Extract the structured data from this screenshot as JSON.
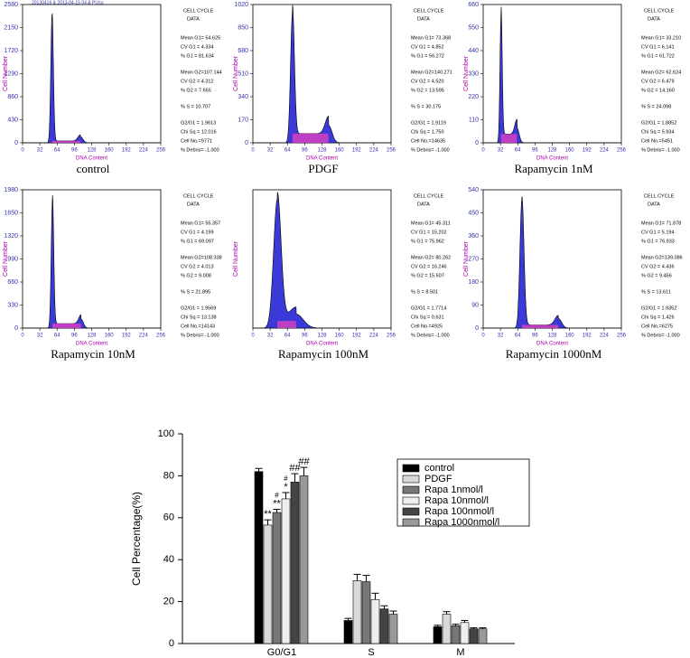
{
  "panels": [
    {
      "title": "control",
      "header": "20130416 & 2013-04-15 04 & PI.fcs",
      "ylabel": "Cell Number",
      "xlabel": "DNA Content",
      "cell_cycle": "CELL CYCLE",
      "data_label": "DATA",
      "ylim": [
        0,
        2580
      ],
      "yticks": [
        0,
        430,
        860,
        1290,
        1720,
        2150,
        2580
      ],
      "xlim": [
        0,
        256
      ],
      "xticks": [
        0,
        32,
        64,
        96,
        128,
        160,
        192,
        224,
        256
      ],
      "stats": [
        "Mean G1= 54.625",
        "CV G1 = 4.334",
        "% G1 = 81.634",
        "Mean G2=107.144",
        "CV G2 = 4.312",
        "% G2 = 7.655",
        "% S = 10.707",
        "G2/G1 = 1.9613",
        "Chi Sq = 12.016",
        "Cell No.=9771",
        "% Debris= -1.000"
      ]
    },
    {
      "title": "PDGF",
      "ylabel": "Cell Number",
      "xlabel": "DNA Content",
      "cell_cycle": "CELL CYCLE",
      "data_label": "DATA",
      "ylim": [
        0,
        1020
      ],
      "yticks": [
        0,
        170,
        340,
        510,
        680,
        850,
        1020
      ],
      "xlim": [
        0,
        256
      ],
      "xticks": [
        0,
        32,
        64,
        96,
        128,
        160,
        192,
        224,
        256
      ],
      "stats": [
        "Mean G1= 73.368",
        "CV G1 = 4.852",
        "% G1 = 56.272",
        "Mean G2=140.271",
        "CV G2 = 4.520",
        "% G2 = 13.595",
        "% S = 30.175",
        "G2/G1 = 1.9119",
        "Chi Sq = 1.750",
        "Cell No.=14635",
        "% Debris= -1.000"
      ]
    },
    {
      "title": "Rapamycin 1nM",
      "ylabel": "Cell Number",
      "xlabel": "DNA Content",
      "cell_cycle": "CELL CYCLE",
      "data_label": "DATA",
      "ylim": [
        0,
        660
      ],
      "yticks": [
        0,
        110,
        220,
        330,
        440,
        550,
        660
      ],
      "xlim": [
        0,
        256
      ],
      "xticks": [
        0,
        32,
        64,
        96,
        128,
        160,
        192,
        224,
        256
      ],
      "stats": [
        "Mean G1= 33.210",
        "CV G1 = 6.141",
        "% G1 = 61.722",
        "Mean G2= 62.624",
        "CV G2 = 6.479",
        "% G2 = 14.160",
        "% S = 24.098",
        "G2/G1 = 1.8852",
        "Chi Sq = 5.934",
        "Cell No.=5451",
        "% Debris= -1.000"
      ]
    },
    {
      "title": "Rapamycin 10nM",
      "ylabel": "Cell Number",
      "xlabel": "DNA Content",
      "cell_cycle": "CELL CYCLE",
      "data_label": "DATA",
      "ylim": [
        0,
        1980
      ],
      "yticks": [
        0,
        330,
        660,
        990,
        1320,
        1650,
        1980
      ],
      "xlim": [
        0,
        256
      ],
      "xticks": [
        0,
        32,
        64,
        96,
        128,
        160,
        192,
        224,
        256
      ],
      "stats": [
        "Mean G1= 55.357",
        "CV G1 = 4.199",
        "% G1 = 69.097",
        "Mean G2=108.338",
        "CV G2 = 4.013",
        "% G2 = 9.008",
        "% S = 21.895",
        "G2/G1 = 1.9569",
        "Chi Sq = 13.138",
        "Cell No.=14143",
        "% Debris= -1.000"
      ]
    },
    {
      "title": "Rapamycin 100nM",
      "ylabel": "Cell Number",
      "xlabel": "DNA Content",
      "cell_cycle": "CELL CYCLE",
      "data_label": "DATA",
      "xlim": [
        0,
        256
      ],
      "xticks": [
        0,
        32,
        64,
        96,
        128,
        160,
        192,
        224,
        256
      ],
      "stats": [
        "Mean G1= 45.311",
        "CV G1 = 15.202",
        "% G1 = 75.962",
        "Mean G2= 80.262",
        "CV G2 = 16.246",
        "% G2 = 15.607",
        "% S = 8.501",
        "G2/G1 = 1.7714",
        "Chi Sq = 0.631",
        "Cell No.=4925",
        "% Debris= -1.000"
      ]
    },
    {
      "title": "Rapamycin 1000nM",
      "ylabel": "Cell Number",
      "xlabel": "DNA Content",
      "cell_cycle": "CELL CYCLE",
      "data_label": "DATA",
      "ylim": [
        0,
        540
      ],
      "yticks": [
        0,
        90,
        180,
        270,
        360,
        450,
        540
      ],
      "xlim": [
        0,
        256
      ],
      "xticks": [
        0,
        32,
        64,
        96,
        128,
        160,
        192,
        224,
        256
      ],
      "stats": [
        "Mean G1= 71.878",
        "CV G1 = 5.194",
        "% G1 = 76.933",
        "Mean G2=139.086",
        "CV G2 = 4.436",
        "% G2 = 9.456",
        "% S = 13.611",
        "G2/G1 = 1.9352",
        "Chi Sq = 1.426",
        "Cell No.=6275",
        "% Debris= -1.000"
      ]
    }
  ],
  "chart_data": {
    "type": "bar",
    "ylabel": "Cell Percentage(%)",
    "categories": [
      "G0/G1",
      "S",
      "M"
    ],
    "ylim": [
      0,
      100
    ],
    "yticks": [
      0,
      20,
      40,
      60,
      80,
      100
    ],
    "series": [
      {
        "name": "control",
        "color": "#000000",
        "values": [
          82,
          11,
          8
        ],
        "errors": [
          1.5,
          1,
          0.7
        ]
      },
      {
        "name": "PDGF",
        "color": "#d9d9d9",
        "values": [
          56.5,
          30,
          14
        ],
        "errors": [
          2.5,
          3,
          1.2
        ],
        "annotations": [
          [
            "**"
          ],
          null,
          null
        ]
      },
      {
        "name": "Rapa 1nmol/l",
        "color": "#777777",
        "values": [
          62.5,
          29.5,
          8.5
        ],
        "errors": [
          1.5,
          3,
          0.7
        ],
        "annotations": [
          [
            "#",
            "**"
          ],
          null,
          null
        ]
      },
      {
        "name": "Rapa 10nmol/l",
        "color": "#eeeeee",
        "values": [
          69,
          21,
          10
        ],
        "errors": [
          3,
          3,
          1
        ],
        "annotations": [
          [
            "#",
            "*"
          ],
          null,
          null
        ]
      },
      {
        "name": "Rapa 100nmol/l",
        "color": "#444444",
        "values": [
          77,
          16.5,
          7
        ],
        "errors": [
          4,
          1.5,
          0.5
        ],
        "annotations": [
          [
            "##"
          ],
          null,
          null
        ]
      },
      {
        "name": "Rapa 1000nmol/l",
        "color": "#999999",
        "values": [
          80,
          14,
          7
        ],
        "errors": [
          4,
          1.5,
          0.5
        ],
        "annotations": [
          [
            "##"
          ],
          null,
          null
        ]
      }
    ]
  }
}
